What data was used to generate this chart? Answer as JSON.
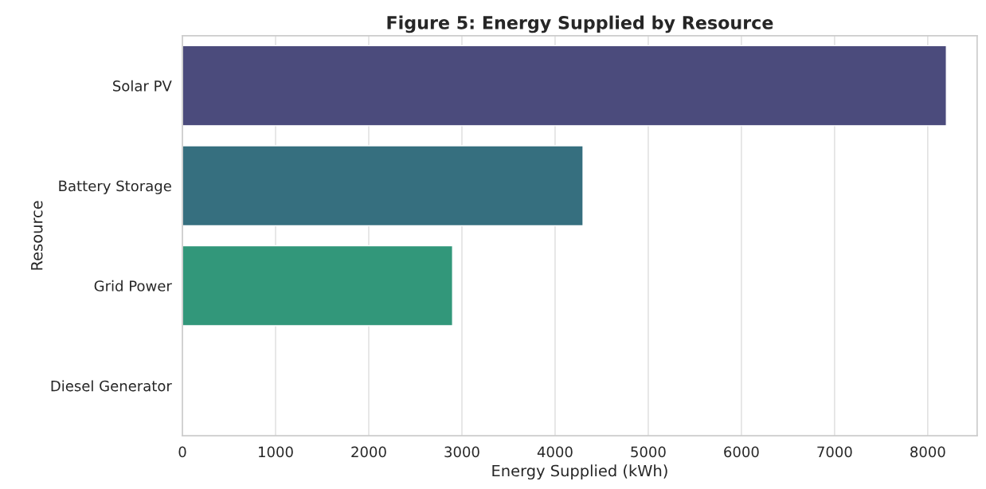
{
  "chart_data": {
    "type": "bar",
    "orientation": "horizontal",
    "title": "Figure 5: Energy Supplied by Resource",
    "xlabel": "Energy Supplied (kWh)",
    "ylabel": "Resource",
    "categories": [
      "Solar PV",
      "Battery Storage",
      "Grid Power",
      "Diesel Generator"
    ],
    "values": [
      8200,
      4300,
      2900,
      0
    ],
    "colors": [
      "#4b4b7c",
      "#366f7f",
      "#32977a",
      null
    ],
    "xlim": [
      0,
      8530
    ],
    "xticks": [
      0,
      1000,
      2000,
      3000,
      4000,
      5000,
      6000,
      7000,
      8000
    ],
    "grid": "x"
  }
}
